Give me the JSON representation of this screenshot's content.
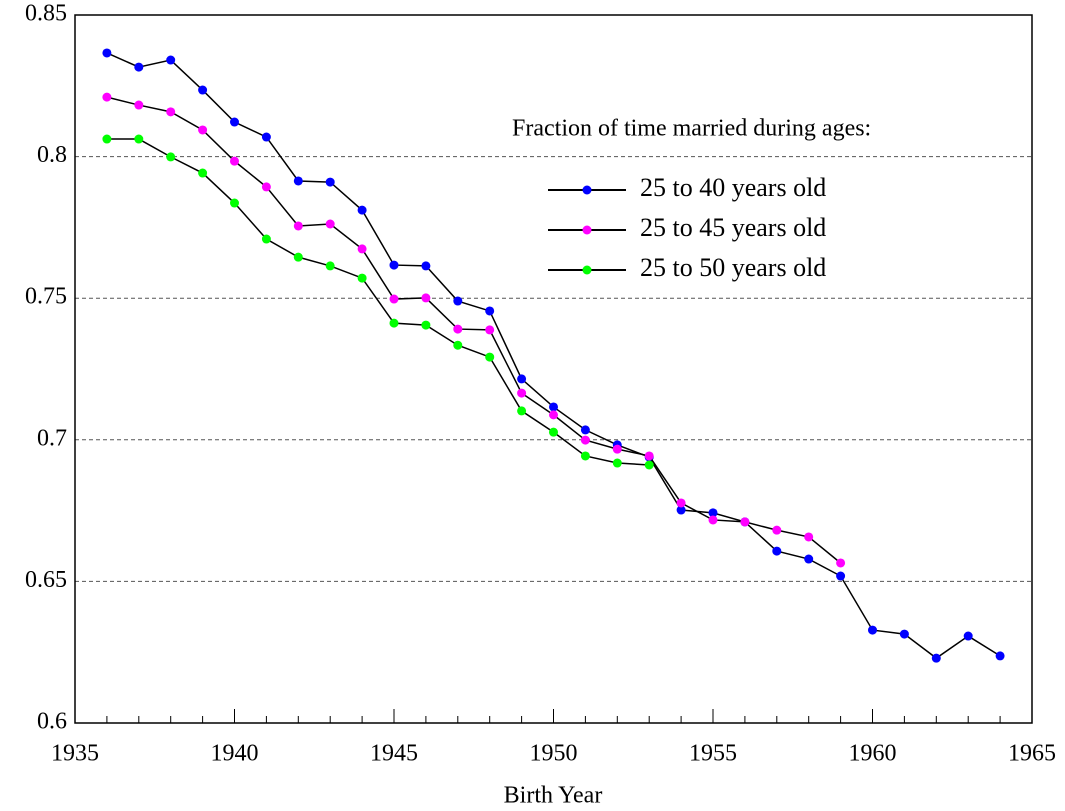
{
  "chart_data": {
    "type": "line",
    "x_label": "Birth Year",
    "legend_title": "Fraction of time married during ages:",
    "x": [
      1936,
      1937,
      1938,
      1939,
      1940,
      1941,
      1942,
      1943,
      1944,
      1945,
      1946,
      1947,
      1948,
      1949,
      1950,
      1951,
      1952,
      1953,
      1954,
      1955,
      1956,
      1957,
      1958,
      1959,
      1960,
      1961,
      1962,
      1963,
      1964
    ],
    "series": [
      {
        "name": "25 to 40 years old",
        "color": "#0000ff",
        "values": [
          0.8366,
          0.8316,
          0.8341,
          0.8235,
          0.8122,
          0.8069,
          0.7914,
          0.791,
          0.7811,
          0.7617,
          0.7614,
          0.749,
          0.7455,
          0.7215,
          0.7116,
          0.7035,
          0.6982,
          0.6939,
          0.6752,
          0.6742,
          0.671,
          0.6607,
          0.6579,
          0.6519,
          0.6328,
          0.6314,
          0.6229,
          0.6307,
          0.6237
        ]
      },
      {
        "name": "25 to 45 years old",
        "color": "#ff00ff",
        "values": [
          0.821,
          0.8182,
          0.8158,
          0.8094,
          0.7984,
          0.7893,
          0.7755,
          0.7762,
          0.7674,
          0.7497,
          0.7501,
          0.7391,
          0.7388,
          0.7165,
          0.7088,
          0.6999,
          0.6967,
          0.6943,
          0.6777,
          0.6717,
          0.671,
          0.6681,
          0.6657,
          0.6565,
          null,
          null,
          null,
          null,
          null
        ]
      },
      {
        "name": "25 to 50 years old",
        "color": "#00ff00",
        "values": [
          0.8062,
          0.8062,
          0.7999,
          0.7942,
          0.7836,
          0.7709,
          0.7645,
          0.7614,
          0.7571,
          0.7412,
          0.7405,
          0.7334,
          0.7292,
          0.7102,
          0.7027,
          0.6943,
          0.6918,
          0.6911,
          null,
          null,
          null,
          null,
          null,
          null,
          null,
          null,
          null,
          null,
          null
        ]
      }
    ],
    "xlim": [
      1935,
      1965
    ],
    "xticks": [
      1935,
      1940,
      1945,
      1950,
      1955,
      1960,
      1965
    ],
    "ylim": [
      0.6,
      0.85
    ],
    "yticks": [
      0.6,
      0.65,
      0.7,
      0.75,
      0.8,
      0.85
    ],
    "grid": true
  }
}
